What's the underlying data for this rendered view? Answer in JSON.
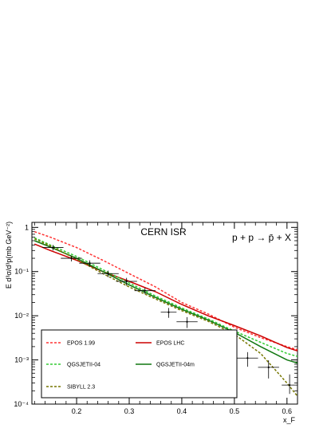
{
  "chart_data": {
    "type": "line",
    "title": "CERN ISR",
    "reaction": "p + p → p̄ + X",
    "xlabel": "x_F",
    "ylabel": "E d³σ/d³p(mb GeV⁻²)",
    "xlim": [
      0.115,
      0.62
    ],
    "ylim": [
      0.0001,
      1.3
    ],
    "y_scale": "log",
    "x_ticks": [
      0.2,
      0.3,
      0.4,
      0.5,
      0.6
    ],
    "x_tick_labels": [
      "0.2",
      "0.3",
      "0.4",
      "0.5",
      "0.6"
    ],
    "y_ticks": [
      1,
      0.1,
      0.01,
      0.001,
      0.0001
    ],
    "y_tick_labels": [
      "1",
      "10⁻¹",
      "10⁻²",
      "10⁻³",
      "10⁻⁴"
    ],
    "grid": false,
    "legend_position": "bottom-left",
    "series": [
      {
        "name": "EPOS 1.99",
        "color": "#ff3333",
        "dash": "dashed",
        "x": [
          0.12,
          0.15,
          0.2,
          0.25,
          0.3,
          0.35,
          0.4,
          0.45,
          0.5,
          0.55,
          0.6,
          0.62
        ],
        "y": [
          0.8,
          0.6,
          0.35,
          0.18,
          0.09,
          0.045,
          0.02,
          0.011,
          0.0055,
          0.0032,
          0.002,
          0.0017
        ]
      },
      {
        "name": "EPOS LHC",
        "color": "#cc0000",
        "dash": "solid",
        "x": [
          0.12,
          0.15,
          0.2,
          0.25,
          0.3,
          0.35,
          0.4,
          0.45,
          0.5,
          0.55,
          0.6,
          0.62
        ],
        "y": [
          0.42,
          0.3,
          0.18,
          0.1,
          0.06,
          0.035,
          0.018,
          0.01,
          0.006,
          0.0035,
          0.0019,
          0.0016
        ]
      },
      {
        "name": "QGSJETII-04",
        "color": "#33cc33",
        "dash": "dashed",
        "x": [
          0.12,
          0.15,
          0.2,
          0.25,
          0.3,
          0.35,
          0.4,
          0.45,
          0.5,
          0.55,
          0.6,
          0.62
        ],
        "y": [
          0.58,
          0.4,
          0.22,
          0.11,
          0.055,
          0.028,
          0.015,
          0.0085,
          0.0045,
          0.0025,
          0.0014,
          0.0012
        ]
      },
      {
        "name": "QGSJETII-04m",
        "color": "#117711",
        "dash": "solid",
        "x": [
          0.12,
          0.15,
          0.2,
          0.25,
          0.3,
          0.35,
          0.4,
          0.45,
          0.5,
          0.55,
          0.6,
          0.62
        ],
        "y": [
          0.5,
          0.36,
          0.2,
          0.1,
          0.05,
          0.026,
          0.014,
          0.008,
          0.0042,
          0.002,
          0.001,
          0.00085
        ]
      },
      {
        "name": "SIBYLL 2.3",
        "color": "#777700",
        "dash": "dashed",
        "x": [
          0.12,
          0.15,
          0.2,
          0.25,
          0.3,
          0.35,
          0.4,
          0.45,
          0.5,
          0.55,
          0.6,
          0.62
        ],
        "y": [
          0.55,
          0.38,
          0.19,
          0.09,
          0.045,
          0.024,
          0.013,
          0.0075,
          0.0038,
          0.0014,
          0.0003,
          0.00015
        ]
      }
    ],
    "data_points": [
      {
        "x": 0.155,
        "y": 0.35,
        "xerr": 0.02,
        "yerr_low": 0.05,
        "yerr_high": 0.05
      },
      {
        "x": 0.19,
        "y": 0.2,
        "xerr": 0.02,
        "yerr_low": 0.03,
        "yerr_high": 0.03
      },
      {
        "x": 0.225,
        "y": 0.155,
        "xerr": 0.02,
        "yerr_low": 0.025,
        "yerr_high": 0.025
      },
      {
        "x": 0.26,
        "y": 0.09,
        "xerr": 0.02,
        "yerr_low": 0.015,
        "yerr_high": 0.015
      },
      {
        "x": 0.295,
        "y": 0.06,
        "xerr": 0.02,
        "yerr_low": 0.012,
        "yerr_high": 0.012
      },
      {
        "x": 0.33,
        "y": 0.037,
        "xerr": 0.02,
        "yerr_low": 0.006,
        "yerr_high": 0.006
      },
      {
        "x": 0.375,
        "y": 0.012,
        "xerr": 0.015,
        "yerr_low": 0.003,
        "yerr_high": 0.003
      },
      {
        "x": 0.41,
        "y": 0.0073,
        "xerr": 0.02,
        "yerr_low": 0.002,
        "yerr_high": 0.002
      },
      {
        "x": 0.455,
        "y": 0.0026,
        "xerr": 0.02,
        "yerr_low": 0.0009,
        "yerr_high": 0.0017
      },
      {
        "x": 0.49,
        "y": 0.0027,
        "xerr": 0.015,
        "yerr_low": 0.0007,
        "yerr_high": 0.001
      },
      {
        "x": 0.525,
        "y": 0.0011,
        "xerr": 0.02,
        "yerr_low": 0.0004,
        "yerr_high": 0.0004
      },
      {
        "x": 0.565,
        "y": 0.00068,
        "xerr": 0.02,
        "yerr_low": 0.0003,
        "yerr_high": 0.0003
      },
      {
        "x": 0.605,
        "y": 0.00027,
        "xerr": 0.015,
        "yerr_low": 0.0001,
        "yerr_high": 0.0002
      }
    ]
  }
}
